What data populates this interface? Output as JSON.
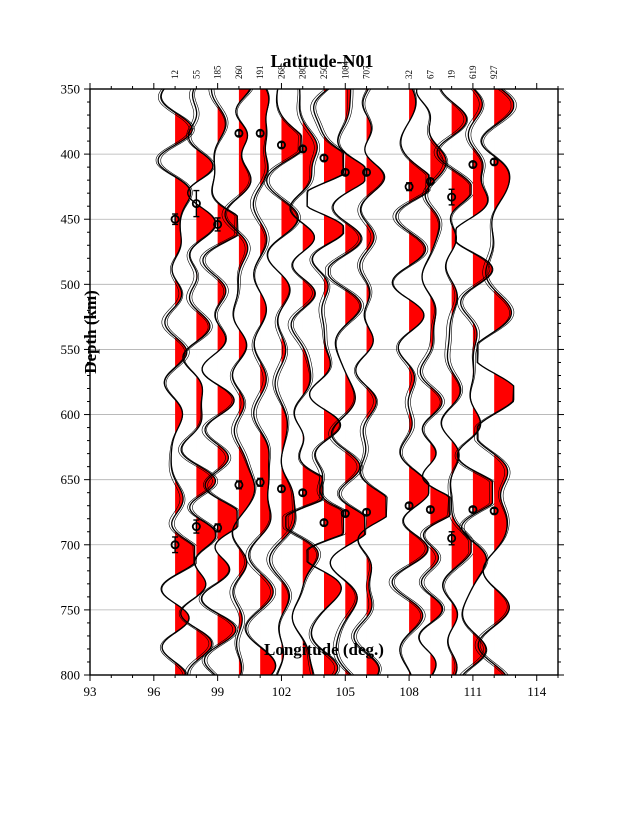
{
  "chart_data": {
    "type": "receiver-function-profile",
    "title": "Latitude-N01",
    "xlabel": "Longitude (deg.)",
    "ylabel": "Depth (km)",
    "xlim": [
      93,
      115
    ],
    "ylim": [
      350,
      800
    ],
    "y_reversed": true,
    "x_ticks": [
      "93",
      "96",
      "99",
      "102",
      "105",
      "108",
      "111",
      "114"
    ],
    "y_ticks": [
      "350",
      "400",
      "450",
      "500",
      "550",
      "600",
      "650",
      "700",
      "750",
      "800"
    ],
    "grid": "horizontal",
    "fill_color": "#ff0000",
    "trace_color": "#000000",
    "traces": [
      {
        "x": 97,
        "count": "12",
        "d410": 450,
        "d410_err": 4,
        "d660": 700,
        "d660_err": 6
      },
      {
        "x": 98,
        "count": "55",
        "d410": 438,
        "d410_err": 10,
        "d660": 686,
        "d660_err": 5
      },
      {
        "x": 99,
        "count": "185",
        "d410": 454,
        "d410_err": 5,
        "d660": 687,
        "d660_err": 3
      },
      {
        "x": 100,
        "count": "260",
        "d410": 384,
        "d410_err": 2,
        "d660": 654,
        "d660_err": 3
      },
      {
        "x": 101,
        "count": "191",
        "d410": 384,
        "d410_err": 2,
        "d660": 652,
        "d660_err": 3
      },
      {
        "x": 102,
        "count": "268",
        "d410": 393,
        "d410_err": 2,
        "d660": 657,
        "d660_err": 2
      },
      {
        "x": 103,
        "count": "280",
        "d410": 396,
        "d410_err": 2,
        "d660": 660,
        "d660_err": 2
      },
      {
        "x": 104,
        "count": "250",
        "d410": 403,
        "d410_err": 2,
        "d660": 683,
        "d660_err": 2
      },
      {
        "x": 105,
        "count": "1084",
        "d410": 414,
        "d410_err": 2,
        "d660": 676,
        "d660_err": 2
      },
      {
        "x": 106,
        "count": "707",
        "d410": 414,
        "d410_err": 2,
        "d660": 675,
        "d660_err": 2
      },
      {
        "x": 108,
        "count": "32",
        "d410": 425,
        "d410_err": 3,
        "d660": 670,
        "d660_err": 2
      },
      {
        "x": 109,
        "count": "67",
        "d410": 421,
        "d410_err": 2,
        "d660": 673,
        "d660_err": 2
      },
      {
        "x": 110,
        "count": "19",
        "d410": 433,
        "d410_err": 6,
        "d660": 695,
        "d660_err": 5
      },
      {
        "x": 111,
        "count": "619",
        "d410": 408,
        "d410_err": 2,
        "d660": 673,
        "d660_err": 2
      },
      {
        "x": 112,
        "count": "927",
        "d410": 406,
        "d410_err": 2,
        "d660": 674,
        "d660_err": 2
      }
    ]
  }
}
